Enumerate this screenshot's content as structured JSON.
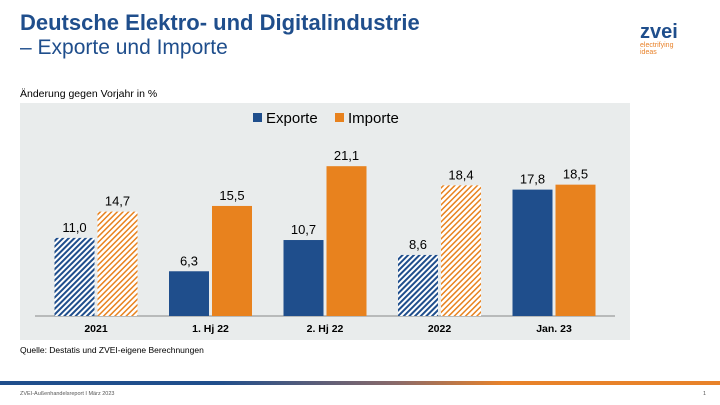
{
  "header": {
    "title": "Deutsche Elektro- und Digitalindustrie",
    "subtitle": "– Exporte und Importe"
  },
  "logo": {
    "name": "zvei",
    "tagline1": "electrifying",
    "tagline2": "ideas"
  },
  "chart_data": {
    "type": "bar",
    "ylabel": "Änderung gegen Vorjahr in %",
    "categories": [
      "2021",
      "1. Hj 22",
      "2. Hj 22",
      "2022",
      "Jan. 23"
    ],
    "hatched_categories": [
      "2021",
      "2022"
    ],
    "series": [
      {
        "name": "Exporte",
        "color": "#1f4e8c",
        "values": [
          11.0,
          6.3,
          10.7,
          8.6,
          17.8
        ],
        "labels": [
          "11,0",
          "6,3",
          "10,7",
          "8,6",
          "17,8"
        ]
      },
      {
        "name": "Importe",
        "color": "#e8821e",
        "values": [
          14.7,
          15.5,
          21.1,
          18.4,
          18.5
        ],
        "labels": [
          "14,7",
          "15,5",
          "21,1",
          "18,4",
          "18,5"
        ]
      }
    ],
    "legend": "top-center",
    "background": "#e9ecec",
    "source": "Quelle: Destatis und ZVEI-eigene Berechnungen"
  },
  "footer": {
    "text": "ZVEI-Außenhandelsreport I März 2023",
    "page": "1"
  }
}
